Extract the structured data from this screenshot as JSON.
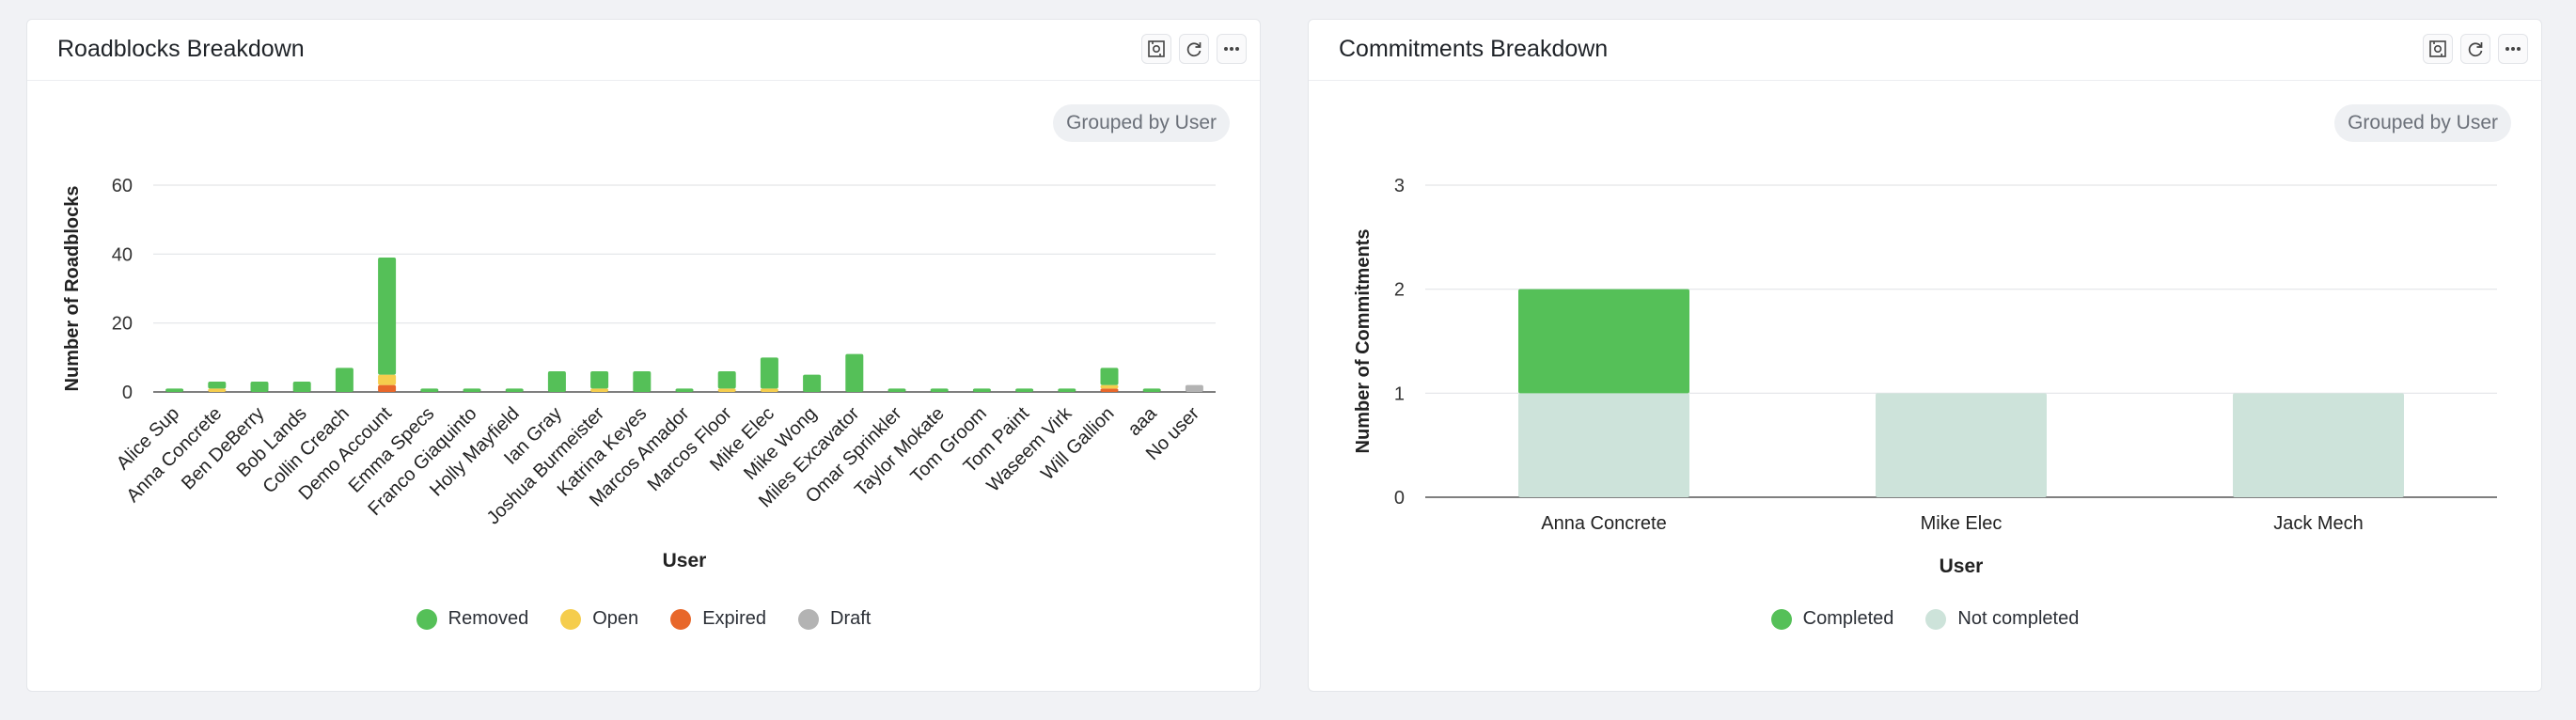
{
  "panels": [
    {
      "title": "Roadblocks Breakdown",
      "chip": "Grouped by User",
      "header_icons": [
        "screenshot-icon",
        "refresh-icon",
        "more-icon"
      ]
    },
    {
      "title": "Commitments Breakdown",
      "chip": "Grouped by User",
      "header_icons": [
        "screenshot-icon",
        "refresh-icon",
        "more-icon"
      ]
    }
  ],
  "chart_data": [
    {
      "type": "bar",
      "stacked": true,
      "title": "Roadblocks Breakdown",
      "xlabel": "User",
      "ylabel": "Number of Roadblocks",
      "ylim": [
        0,
        60
      ],
      "yticks": [
        0,
        20,
        40,
        60
      ],
      "grid": true,
      "legend_position": "bottom",
      "categories": [
        "Alice Sup",
        "Anna Concrete",
        "Ben DeBerry",
        "Bob Lands",
        "Collin Creach",
        "Demo Account",
        "Emma Specs",
        "Franco Giaquinto",
        "Holly Mayfield",
        "Ian Gray",
        "Joshua Burmeister",
        "Katrina Keyes",
        "Marcos Amador",
        "Marcos Floor",
        "Mike Elec",
        "Mike Wong",
        "Miles Excavator",
        "Omar Sprinkler",
        "Taylor Mokate",
        "Tom Groom",
        "Tom Paint",
        "Waseem Virk",
        "Will Gallion",
        "aaa",
        "No user"
      ],
      "series": [
        {
          "name": "Removed",
          "color": "#55c058",
          "values": [
            1,
            2,
            3,
            3,
            7,
            34,
            1,
            1,
            1,
            6,
            5,
            6,
            1,
            5,
            9,
            5,
            11,
            1,
            1,
            1,
            1,
            1,
            5,
            1,
            0
          ]
        },
        {
          "name": "Open",
          "color": "#f5cd4d",
          "values": [
            0,
            1,
            0,
            0,
            0,
            3,
            0,
            0,
            0,
            0,
            1,
            0,
            0,
            1,
            1,
            0,
            0,
            0,
            0,
            0,
            0,
            0,
            1,
            0,
            0
          ]
        },
        {
          "name": "Expired",
          "color": "#e8672a",
          "values": [
            0,
            0,
            0,
            0,
            0,
            2,
            0,
            0,
            0,
            0,
            0,
            0,
            0,
            0,
            0,
            0,
            0,
            0,
            0,
            0,
            0,
            0,
            1,
            0,
            0
          ]
        },
        {
          "name": "Draft",
          "color": "#b3b3b3",
          "values": [
            0,
            0,
            0,
            0,
            0,
            0,
            0,
            0,
            0,
            0,
            0,
            0,
            0,
            0,
            0,
            0,
            0,
            0,
            0,
            0,
            0,
            0,
            0,
            0,
            2
          ]
        }
      ]
    },
    {
      "type": "bar",
      "stacked": true,
      "title": "Commitments Breakdown",
      "xlabel": "User",
      "ylabel": "Number of Commitments",
      "ylim": [
        0,
        3
      ],
      "yticks": [
        0,
        1,
        2,
        3
      ],
      "grid": true,
      "legend_position": "bottom",
      "categories": [
        "Anna Concrete",
        "Mike Elec",
        "Jack Mech"
      ],
      "series": [
        {
          "name": "Not completed",
          "color": "#cde3da",
          "values": [
            1,
            1,
            1
          ]
        },
        {
          "name": "Completed",
          "color": "#55c058",
          "values": [
            1,
            0,
            0
          ]
        }
      ],
      "legend_order": [
        "Completed",
        "Not completed"
      ]
    }
  ]
}
